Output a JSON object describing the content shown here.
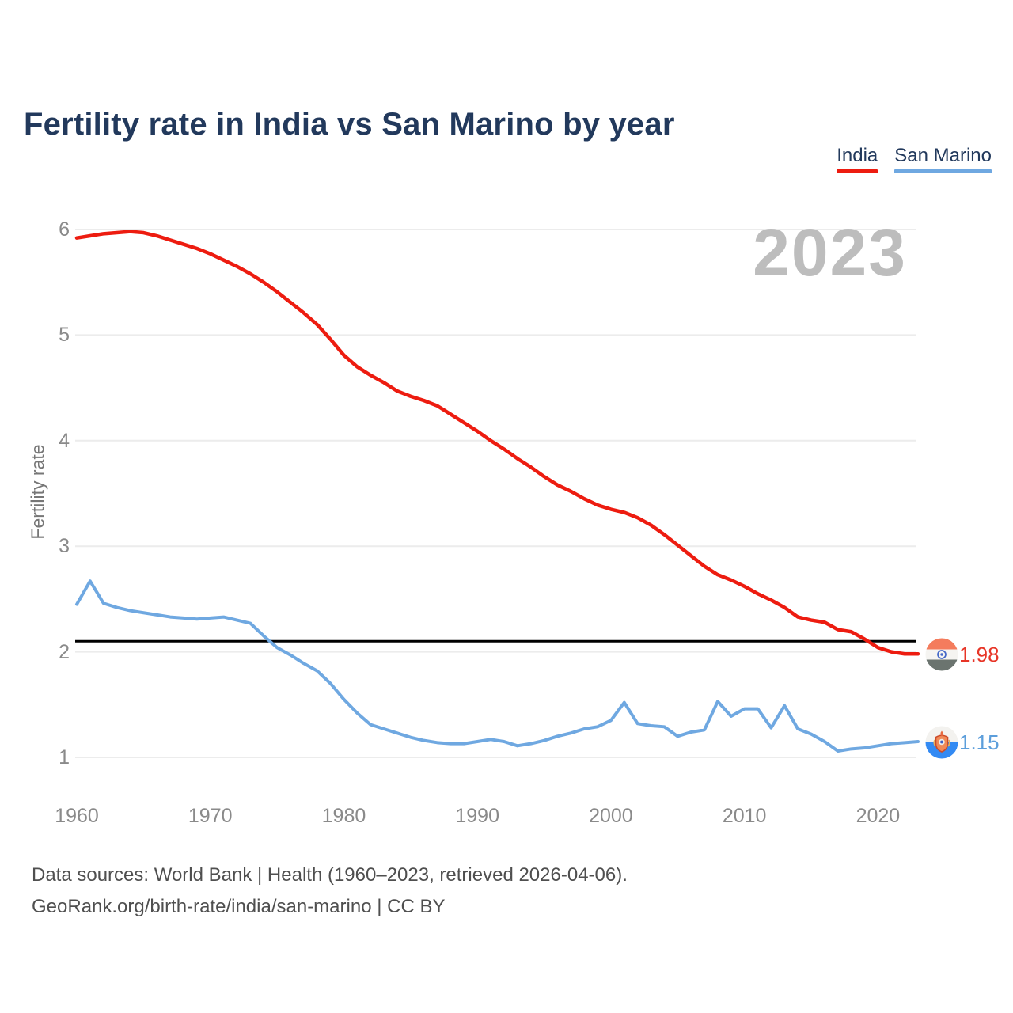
{
  "title": "Fertility rate in India vs San Marino by year",
  "watermark": "2023",
  "legend": {
    "items": [
      {
        "label": "India",
        "color": "#ed1c10"
      },
      {
        "label": "San Marino",
        "color": "#6fa8e1"
      }
    ]
  },
  "y_axis": {
    "label": "Fertility rate",
    "ticks": [
      "6",
      "5",
      "4",
      "3",
      "2",
      "1"
    ]
  },
  "x_axis": {
    "ticks": [
      "1960",
      "1970",
      "1980",
      "1990",
      "2000",
      "2010",
      "2020"
    ]
  },
  "reference_line": {
    "value": 2.1,
    "color": "#000000"
  },
  "end_labels": [
    {
      "series": "India",
      "value": "1.98",
      "color": "#e73527"
    },
    {
      "series": "San Marino",
      "value": "1.15",
      "color": "#5c9edb"
    }
  ],
  "footer": {
    "line1": "Data sources: World Bank | Health (1960–2023, retrieved 2026-04-06).",
    "line2": "GeoRank.org/birth-rate/india/san-marino | CC BY"
  },
  "chart_data": {
    "type": "line",
    "title": "Fertility rate in India vs San Marino by year",
    "xlabel": "",
    "ylabel": "Fertility rate",
    "xlim": [
      1960,
      2023
    ],
    "ylim": [
      1,
      6
    ],
    "grid": "horizontal",
    "legend_position": "top-right",
    "reference_line_y": 2.1,
    "x": [
      1960,
      1961,
      1962,
      1963,
      1964,
      1965,
      1966,
      1967,
      1968,
      1969,
      1970,
      1971,
      1972,
      1973,
      1974,
      1975,
      1976,
      1977,
      1978,
      1979,
      1980,
      1981,
      1982,
      1983,
      1984,
      1985,
      1986,
      1987,
      1988,
      1989,
      1990,
      1991,
      1992,
      1993,
      1994,
      1995,
      1996,
      1997,
      1998,
      1999,
      2000,
      2001,
      2002,
      2003,
      2004,
      2005,
      2006,
      2007,
      2008,
      2009,
      2010,
      2011,
      2012,
      2013,
      2014,
      2015,
      2016,
      2017,
      2018,
      2019,
      2020,
      2021,
      2022,
      2023
    ],
    "series": [
      {
        "name": "India",
        "color": "#ed1c10",
        "values": [
          5.92,
          5.94,
          5.96,
          5.97,
          5.98,
          5.97,
          5.94,
          5.9,
          5.86,
          5.82,
          5.77,
          5.71,
          5.65,
          5.58,
          5.5,
          5.41,
          5.31,
          5.21,
          5.1,
          4.96,
          4.81,
          4.7,
          4.62,
          4.55,
          4.47,
          4.42,
          4.38,
          4.33,
          4.25,
          4.17,
          4.09,
          4.0,
          3.92,
          3.83,
          3.75,
          3.66,
          3.58,
          3.52,
          3.45,
          3.39,
          3.35,
          3.32,
          3.27,
          3.2,
          3.11,
          3.01,
          2.91,
          2.81,
          2.73,
          2.68,
          2.62,
          2.55,
          2.49,
          2.42,
          2.33,
          2.3,
          2.28,
          2.21,
          2.19,
          2.12,
          2.04,
          2.0,
          1.98,
          1.98
        ]
      },
      {
        "name": "San Marino",
        "color": "#6fa8e1",
        "values": [
          2.45,
          2.67,
          2.46,
          2.42,
          2.39,
          2.37,
          2.35,
          2.33,
          2.32,
          2.31,
          2.32,
          2.33,
          2.3,
          2.27,
          2.15,
          2.04,
          1.97,
          1.89,
          1.82,
          1.7,
          1.55,
          1.42,
          1.31,
          1.27,
          1.23,
          1.19,
          1.16,
          1.14,
          1.13,
          1.13,
          1.15,
          1.17,
          1.15,
          1.11,
          1.13,
          1.16,
          1.2,
          1.23,
          1.27,
          1.29,
          1.35,
          1.52,
          1.32,
          1.3,
          1.29,
          1.2,
          1.24,
          1.26,
          1.53,
          1.39,
          1.46,
          1.46,
          1.28,
          1.49,
          1.27,
          1.22,
          1.15,
          1.06,
          1.08,
          1.09,
          1.11,
          1.13,
          1.14,
          1.15
        ]
      }
    ]
  }
}
